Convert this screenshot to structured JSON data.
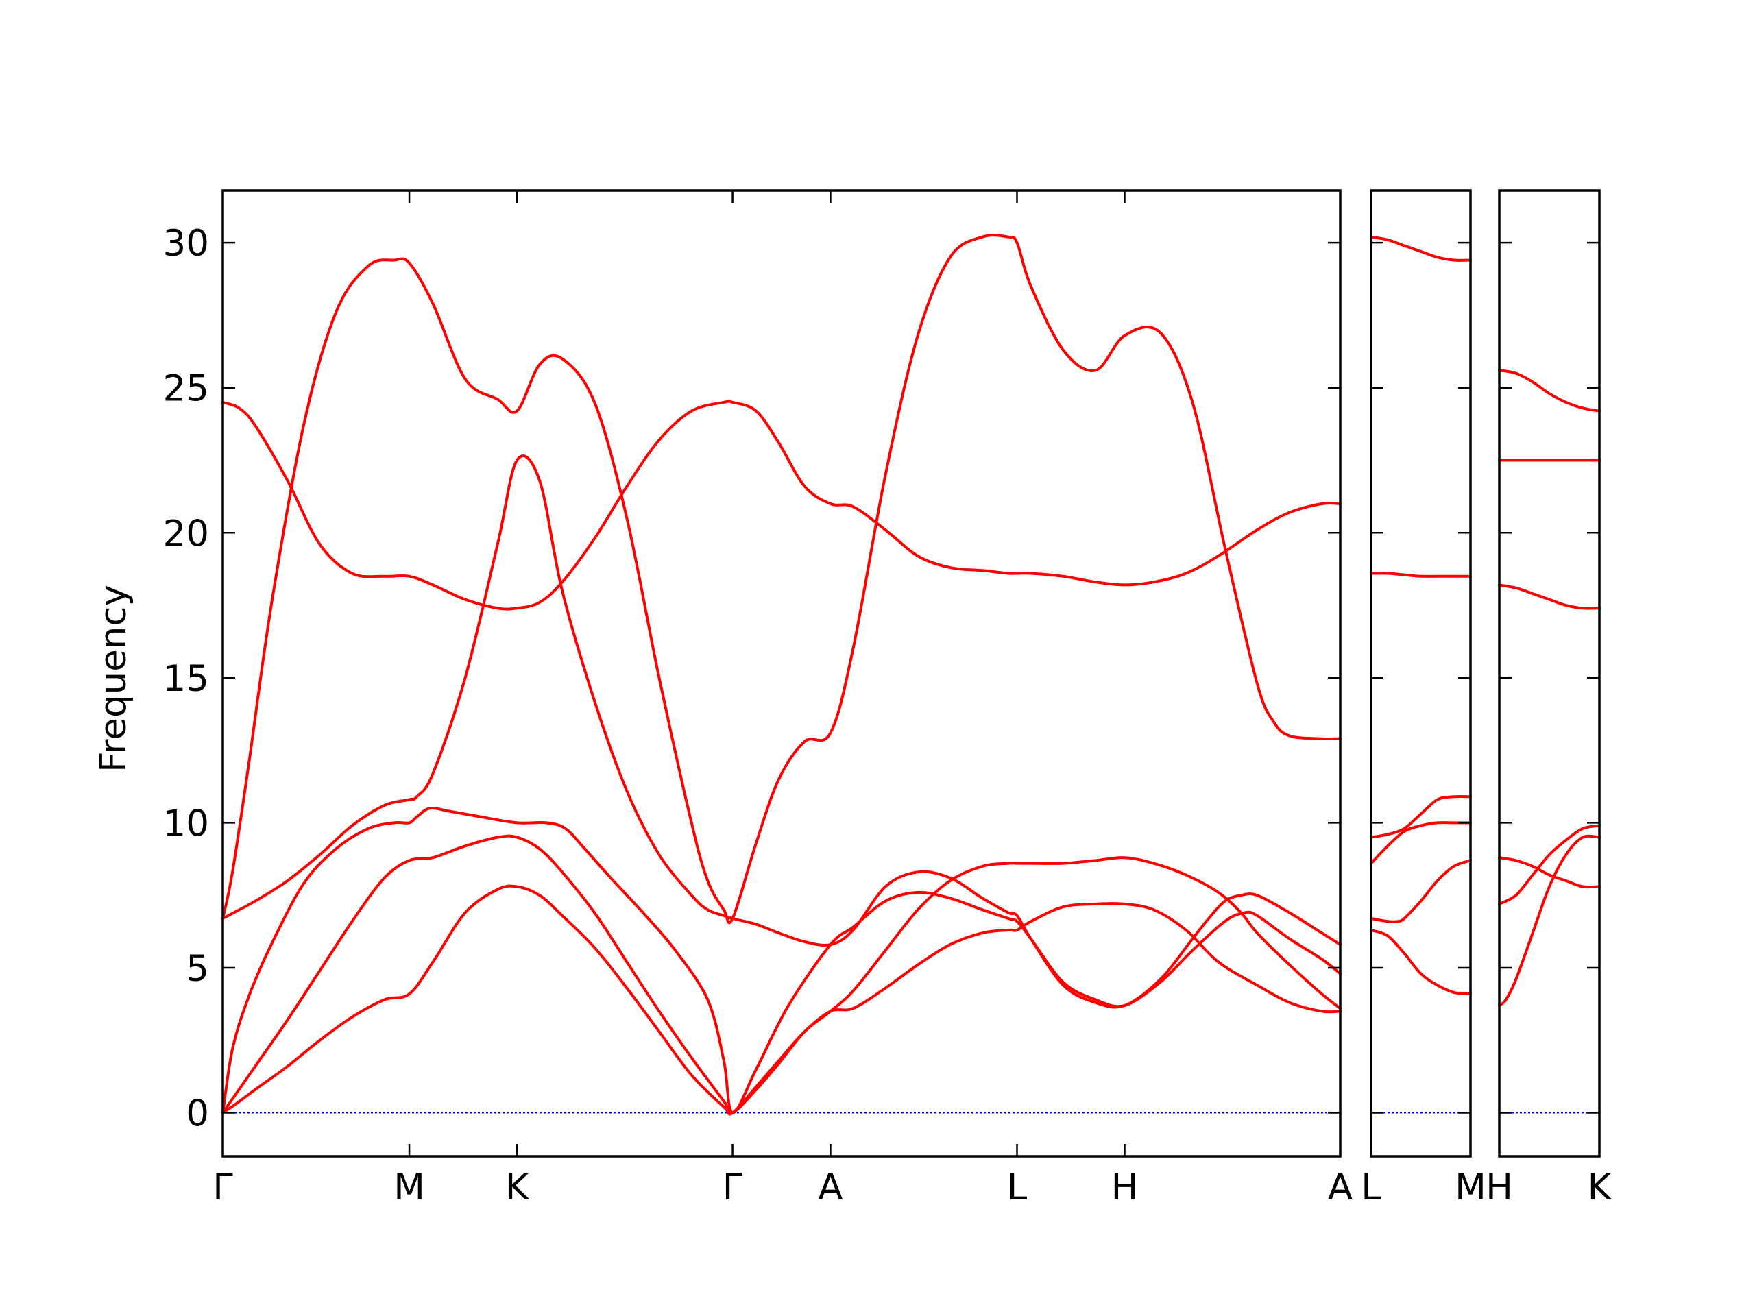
{
  "chart_data": {
    "type": "line",
    "ylabel": "Frequency",
    "ylim": [
      -1.5,
      31.8
    ],
    "yticks": [
      0,
      5,
      10,
      15,
      20,
      25,
      30
    ],
    "grid": false,
    "colors": {
      "bands": "#ff0000",
      "zero_line": "#0000ff"
    },
    "panels": [
      {
        "path": [
          "Γ",
          "M",
          "K",
          "Γ",
          "A",
          "L",
          "H",
          "A"
        ],
        "xticks": [
          {
            "x": 0,
            "label": "Γ"
          },
          {
            "x": 0.577,
            "label": "M"
          },
          {
            "x": 0.91,
            "label": "K"
          },
          {
            "x": 1.577,
            "label": "Γ"
          },
          {
            "x": 1.88,
            "label": "A"
          },
          {
            "x": 2.457,
            "label": "L"
          },
          {
            "x": 2.79,
            "label": "H"
          },
          {
            "x": 3.457,
            "label": "A"
          }
        ],
        "xlim": [
          0,
          3.457
        ],
        "bands": [
          {
            "x": [
              0,
              0.04,
              0.1,
              0.2,
              0.3,
              0.4,
              0.5,
              0.577,
              0.65,
              0.75,
              0.85,
              0.91,
              0.98,
              1.05,
              1.15,
              1.25,
              1.35,
              1.45,
              1.55,
              1.577,
              1.65,
              1.72,
              1.8,
              1.88,
              1.95,
              2.05,
              2.15,
              2.25,
              2.35,
              2.43,
              2.457,
              2.5,
              2.6,
              2.7,
              2.79,
              2.88,
              2.98,
              3.08,
              3.2,
              3.3,
              3.4,
              3.457
            ],
            "y": [
              0,
              0.3,
              0.8,
              1.6,
              2.5,
              3.3,
              3.9,
              4.1,
              5.2,
              6.9,
              7.7,
              7.8,
              7.5,
              6.8,
              5.7,
              4.3,
              2.8,
              1.3,
              0.2,
              0,
              0.9,
              1.8,
              2.8,
              3.5,
              3.6,
              4.3,
              5.1,
              5.8,
              6.2,
              6.3,
              6.3,
              6.6,
              7.1,
              7.2,
              7.2,
              7.0,
              6.3,
              5.2,
              4.4,
              3.8,
              3.5,
              3.5
            ]
          },
          {
            "x": [
              0,
              0.05,
              0.1,
              0.2,
              0.3,
              0.4,
              0.5,
              0.577,
              0.65,
              0.75,
              0.85,
              0.91,
              0.98,
              1.05,
              1.15,
              1.25,
              1.35,
              1.45,
              1.55,
              1.577,
              1.65,
              1.72,
              1.8,
              1.88,
              1.95,
              2.05,
              2.15,
              2.25,
              2.35,
              2.43,
              2.457,
              2.5,
              2.6,
              2.7,
              2.79,
              2.88,
              2.98,
              3.08,
              3.15,
              3.2,
              3.3,
              3.4,
              3.457
            ],
            "y": [
              0,
              0.8,
              1.6,
              3.2,
              4.9,
              6.6,
              8.1,
              8.7,
              8.8,
              9.2,
              9.5,
              9.5,
              9.1,
              8.3,
              6.9,
              5.2,
              3.5,
              1.9,
              0.4,
              0,
              0.8,
              1.7,
              2.8,
              3.5,
              4.2,
              5.6,
              7.0,
              8.0,
              8.5,
              8.6,
              8.6,
              8.6,
              8.6,
              8.7,
              8.8,
              8.6,
              8.2,
              7.6,
              6.9,
              6.2,
              5.1,
              4.1,
              3.6
            ]
          },
          {
            "x": [
              0,
              0.03,
              0.08,
              0.15,
              0.25,
              0.35,
              0.45,
              0.53,
              0.577,
              0.6,
              0.64,
              0.7,
              0.8,
              0.91,
              1.0,
              1.06,
              1.12,
              1.2,
              1.3,
              1.4,
              1.5,
              1.55,
              1.577,
              1.65,
              1.75,
              1.88,
              1.95,
              2.05,
              2.15,
              2.25,
              2.35,
              2.43,
              2.457,
              2.5,
              2.6,
              2.7,
              2.79,
              2.9,
              3.0,
              3.1,
              3.16,
              3.2,
              3.3,
              3.4,
              3.457
            ],
            "y": [
              0,
              2.2,
              4.0,
              5.8,
              7.9,
              9.1,
              9.8,
              10.0,
              10.0,
              10.2,
              10.5,
              10.4,
              10.2,
              10.0,
              10.0,
              9.8,
              9.1,
              8.1,
              6.9,
              5.6,
              3.9,
              1.8,
              0,
              1.5,
              3.7,
              5.8,
              6.4,
              7.3,
              7.6,
              7.4,
              7.0,
              6.7,
              6.6,
              6.0,
              4.5,
              3.9,
              3.7,
              4.5,
              5.6,
              6.6,
              6.9,
              6.8,
              6.0,
              5.3,
              4.8
            ]
          },
          {
            "x": [
              0,
              0.1,
              0.2,
              0.3,
              0.4,
              0.5,
              0.577,
              0.6,
              0.65,
              0.75,
              0.85,
              0.91,
              0.98,
              1.05,
              1.15,
              1.25,
              1.35,
              1.45,
              1.5,
              1.55,
              1.577,
              1.65,
              1.72,
              1.8,
              1.88,
              1.95,
              2.05,
              2.15,
              2.25,
              2.35,
              2.43,
              2.457,
              2.5,
              2.6,
              2.7,
              2.79,
              2.9,
              3.0,
              3.05,
              3.1,
              3.15,
              3.2,
              3.3,
              3.4,
              3.457
            ],
            "y": [
              6.7,
              7.3,
              8.0,
              8.9,
              9.9,
              10.6,
              10.8,
              10.9,
              11.7,
              15.0,
              19.6,
              22.5,
              21.8,
              18.0,
              14.2,
              11.1,
              8.9,
              7.5,
              7.0,
              6.8,
              6.7,
              6.5,
              6.2,
              5.9,
              5.8,
              6.3,
              7.8,
              8.3,
              8.1,
              7.4,
              6.9,
              6.8,
              6.0,
              4.4,
              3.8,
              3.7,
              4.6,
              6.0,
              6.7,
              7.3,
              7.5,
              7.5,
              6.9,
              6.2,
              5.8
            ]
          },
          {
            "x": [
              0,
              0.03,
              0.08,
              0.15,
              0.25,
              0.35,
              0.45,
              0.53,
              0.577,
              0.65,
              0.75,
              0.85,
              0.91,
              0.98,
              1.05,
              1.15,
              1.25,
              1.35,
              1.45,
              1.5,
              1.55,
              1.577,
              1.65,
              1.72,
              1.8,
              1.88,
              1.95,
              2.05,
              2.15,
              2.25,
              2.35,
              2.43,
              2.457,
              2.5,
              2.6,
              2.7,
              2.79,
              2.9,
              3.0,
              3.1,
              3.2,
              3.25,
              3.3,
              3.4,
              3.457
            ],
            "y": [
              6.7,
              8.3,
              12.0,
              17.5,
              23.7,
              27.6,
              29.2,
              29.4,
              29.3,
              27.9,
              25.3,
              24.6,
              24.2,
              25.8,
              26.0,
              24.5,
              20.5,
              15.0,
              10.0,
              8.0,
              7.0,
              6.7,
              9.3,
              11.5,
              12.8,
              13.1,
              16.0,
              22.0,
              26.8,
              29.5,
              30.2,
              30.2,
              30.0,
              28.5,
              26.3,
              25.6,
              26.8,
              26.9,
              24.5,
              19.5,
              14.8,
              13.5,
              13.0,
              12.9,
              12.9
            ]
          },
          {
            "x": [
              0,
              0.05,
              0.1,
              0.2,
              0.3,
              0.4,
              0.5,
              0.577,
              0.65,
              0.75,
              0.85,
              0.91,
              0.98,
              1.05,
              1.15,
              1.25,
              1.35,
              1.45,
              1.55,
              1.577,
              1.65,
              1.72,
              1.8,
              1.88,
              1.95,
              2.05,
              2.15,
              2.25,
              2.35,
              2.43,
              2.457,
              2.5,
              2.6,
              2.7,
              2.79,
              2.88,
              2.98,
              3.08,
              3.2,
              3.3,
              3.4,
              3.457
            ],
            "y": [
              24.5,
              24.3,
              23.7,
              21.8,
              19.6,
              18.6,
              18.5,
              18.5,
              18.2,
              17.7,
              17.4,
              17.4,
              17.6,
              18.3,
              19.8,
              21.6,
              23.2,
              24.2,
              24.5,
              24.5,
              24.2,
              23.1,
              21.6,
              21.0,
              20.9,
              20.1,
              19.2,
              18.8,
              18.7,
              18.6,
              18.6,
              18.6,
              18.5,
              18.3,
              18.2,
              18.3,
              18.6,
              19.2,
              20.1,
              20.7,
              21.0,
              21.0
            ]
          }
        ]
      },
      {
        "path": [
          "L",
          "M"
        ],
        "xticks": [
          {
            "x": 0,
            "label": "L"
          },
          {
            "x": 0.3,
            "label": "M"
          }
        ],
        "xlim": [
          0,
          0.3
        ],
        "bands": [
          {
            "x": [
              0,
              0.05,
              0.1,
              0.15,
              0.2,
              0.25,
              0.3
            ],
            "y": [
              6.3,
              6.1,
              5.5,
              4.8,
              4.4,
              4.15,
              4.1
            ]
          },
          {
            "x": [
              0,
              0.05,
              0.08,
              0.1,
              0.15,
              0.2,
              0.25,
              0.3
            ],
            "y": [
              6.7,
              6.6,
              6.6,
              6.7,
              7.3,
              8.0,
              8.5,
              8.7
            ]
          },
          {
            "x": [
              0,
              0.05,
              0.1,
              0.15,
              0.2,
              0.25,
              0.3
            ],
            "y": [
              8.6,
              9.2,
              9.7,
              9.9,
              10.0,
              10.0,
              10.0
            ]
          },
          {
            "x": [
              0,
              0.05,
              0.1,
              0.15,
              0.2,
              0.25,
              0.3
            ],
            "y": [
              9.5,
              9.6,
              9.8,
              10.3,
              10.8,
              10.9,
              10.9
            ]
          },
          {
            "x": [
              0,
              0.05,
              0.1,
              0.15,
              0.2,
              0.25,
              0.3
            ],
            "y": [
              18.6,
              18.6,
              18.55,
              18.5,
              18.5,
              18.5,
              18.5
            ]
          },
          {
            "x": [
              0,
              0.05,
              0.1,
              0.15,
              0.2,
              0.25,
              0.3
            ],
            "y": [
              30.2,
              30.1,
              29.9,
              29.7,
              29.5,
              29.4,
              29.4
            ]
          }
        ]
      },
      {
        "path": [
          "H",
          "K"
        ],
        "xticks": [
          {
            "x": 0,
            "label": "H"
          },
          {
            "x": 0.3,
            "label": "K"
          }
        ],
        "xlim": [
          0,
          0.3
        ],
        "bands": [
          {
            "x": [
              0,
              0.02,
              0.05,
              0.1,
              0.15,
              0.2,
              0.25,
              0.3
            ],
            "y": [
              3.7,
              3.9,
              4.6,
              6.2,
              7.8,
              8.9,
              9.5,
              9.5
            ]
          },
          {
            "x": [
              0,
              0.05,
              0.1,
              0.15,
              0.2,
              0.25,
              0.3
            ],
            "y": [
              7.2,
              7.5,
              8.2,
              8.9,
              9.4,
              9.8,
              9.9
            ]
          },
          {
            "x": [
              0,
              0.05,
              0.1,
              0.15,
              0.2,
              0.25,
              0.3
            ],
            "y": [
              8.8,
              8.7,
              8.5,
              8.2,
              8.0,
              7.8,
              7.8
            ]
          },
          {
            "x": [
              0,
              0.05,
              0.1,
              0.15,
              0.2,
              0.25,
              0.3
            ],
            "y": [
              18.2,
              18.1,
              17.9,
              17.7,
              17.5,
              17.4,
              17.4
            ]
          },
          {
            "x": [
              0,
              0.1,
              0.2,
              0.3
            ],
            "y": [
              22.5,
              22.5,
              22.5,
              22.5
            ]
          },
          {
            "x": [
              0,
              0.05,
              0.1,
              0.15,
              0.2,
              0.25,
              0.3
            ],
            "y": [
              25.6,
              25.5,
              25.2,
              24.8,
              24.5,
              24.3,
              24.2
            ]
          }
        ]
      }
    ]
  }
}
